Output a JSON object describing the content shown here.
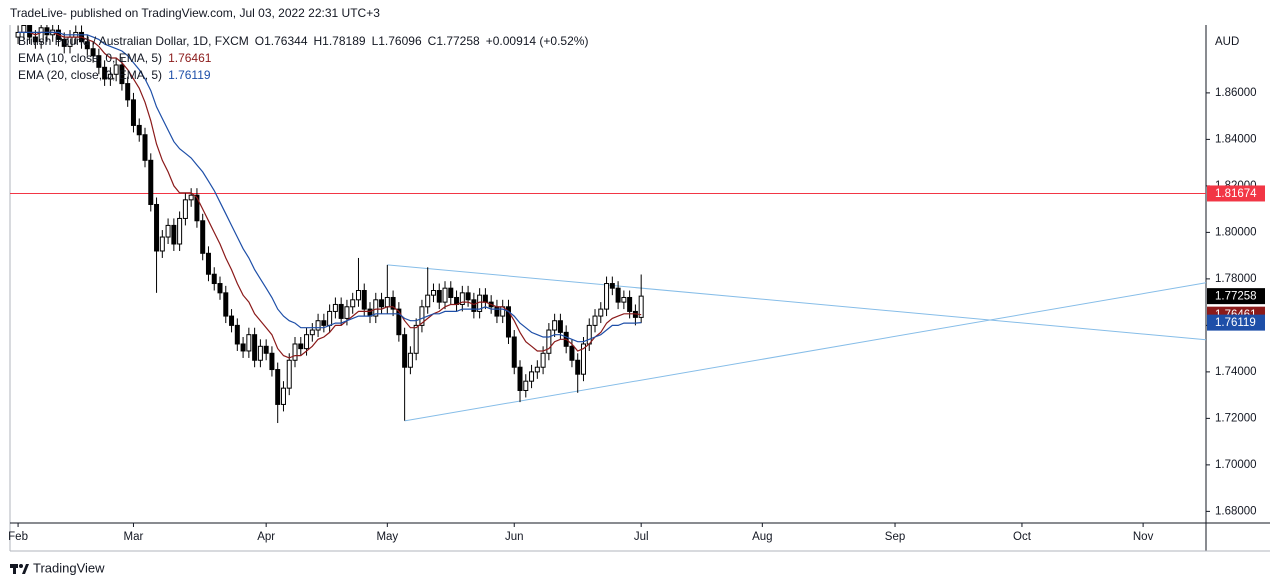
{
  "header": {
    "published": "TradeLive- published on TradingView.com, Jul 03, 2022 22:31 UTC+3"
  },
  "chart_data": {
    "type": "candlestick",
    "symbol": "British Pound / Australian Dollar, 1D, FXCM",
    "currency": "AUD",
    "ohlc_prefixes": [
      "O",
      "H",
      "L",
      "C"
    ],
    "change_label": "+0.00914 (+0.52%)",
    "up_color": "#ffffff",
    "down_color": "#000000",
    "last_color": "#000000",
    "open": [
      1.884,
      1.886,
      1.889,
      1.884,
      1.882,
      1.888,
      1.885,
      1.887,
      1.883,
      1.88,
      1.884,
      1.886,
      1.882,
      1.879,
      1.876,
      1.871,
      1.866,
      1.868,
      1.872,
      1.864,
      1.857,
      1.846,
      1.842,
      1.831,
      1.812,
      1.792,
      1.798,
      1.803,
      1.795,
      1.806,
      1.814,
      1.816,
      1.805,
      1.791,
      1.782,
      1.778,
      1.774,
      1.764,
      1.76,
      1.752,
      1.749,
      1.756,
      1.745,
      1.751,
      1.748,
      1.741,
      1.726,
      1.733,
      1.745,
      1.752,
      1.75,
      1.756,
      1.758,
      1.762,
      1.76,
      1.766,
      1.769,
      1.763,
      1.768,
      1.771,
      1.775,
      1.767,
      1.764,
      1.771,
      1.768,
      1.772,
      1.767,
      1.756,
      1.742,
      1.748,
      1.76,
      1.768,
      1.773,
      1.775,
      1.77,
      1.776,
      1.772,
      1.769,
      1.774,
      1.771,
      1.766,
      1.773,
      1.77,
      1.768,
      1.764,
      1.768,
      1.755,
      1.742,
      1.732,
      1.736,
      1.74,
      1.742,
      1.748,
      1.758,
      1.762,
      1.757,
      1.751,
      1.745,
      1.739,
      1.752,
      1.76,
      1.764,
      1.767,
      1.778,
      1.776,
      1.77,
      1.772,
      1.766,
      1.76344
    ],
    "high": [
      1.889,
      1.892,
      1.892,
      1.887,
      1.891,
      1.891,
      1.89,
      1.89,
      1.886,
      1.887,
      1.889,
      1.889,
      1.885,
      1.882,
      1.879,
      1.874,
      1.871,
      1.875,
      1.875,
      1.867,
      1.86,
      1.849,
      1.845,
      1.834,
      1.815,
      1.801,
      1.806,
      1.806,
      1.809,
      1.817,
      1.819,
      1.819,
      1.808,
      1.794,
      1.785,
      1.781,
      1.777,
      1.767,
      1.763,
      1.755,
      1.759,
      1.759,
      1.754,
      1.754,
      1.751,
      1.744,
      1.736,
      1.748,
      1.755,
      1.755,
      1.759,
      1.761,
      1.765,
      1.765,
      1.769,
      1.772,
      1.772,
      1.771,
      1.774,
      1.789,
      1.778,
      1.77,
      1.774,
      1.774,
      1.786,
      1.775,
      1.77,
      1.759,
      1.751,
      1.763,
      1.771,
      1.785,
      1.778,
      1.778,
      1.779,
      1.779,
      1.775,
      1.777,
      1.777,
      1.774,
      1.776,
      1.776,
      1.773,
      1.771,
      1.771,
      1.771,
      1.758,
      1.745,
      1.739,
      1.743,
      1.745,
      1.751,
      1.761,
      1.765,
      1.765,
      1.76,
      1.754,
      1.748,
      1.755,
      1.763,
      1.767,
      1.77,
      1.781,
      1.781,
      1.779,
      1.775,
      1.775,
      1.769,
      1.78189
    ],
    "low": [
      1.881,
      1.883,
      1.881,
      1.879,
      1.879,
      1.882,
      1.882,
      1.88,
      1.877,
      1.877,
      1.881,
      1.879,
      1.876,
      1.873,
      1.868,
      1.863,
      1.863,
      1.865,
      1.861,
      1.854,
      1.843,
      1.839,
      1.828,
      1.809,
      1.774,
      1.789,
      1.795,
      1.792,
      1.792,
      1.803,
      1.811,
      1.802,
      1.788,
      1.779,
      1.775,
      1.771,
      1.761,
      1.757,
      1.749,
      1.746,
      1.746,
      1.742,
      1.742,
      1.745,
      1.738,
      1.718,
      1.723,
      1.73,
      1.742,
      1.747,
      1.747,
      1.753,
      1.755,
      1.757,
      1.757,
      1.763,
      1.76,
      1.76,
      1.765,
      1.768,
      1.764,
      1.761,
      1.761,
      1.765,
      1.765,
      1.764,
      1.753,
      1.719,
      1.739,
      1.745,
      1.757,
      1.765,
      1.77,
      1.767,
      1.767,
      1.769,
      1.766,
      1.766,
      1.768,
      1.763,
      1.763,
      1.767,
      1.765,
      1.761,
      1.761,
      1.752,
      1.739,
      1.727,
      1.729,
      1.733,
      1.737,
      1.739,
      1.745,
      1.755,
      1.754,
      1.748,
      1.742,
      1.731,
      1.736,
      1.749,
      1.757,
      1.761,
      1.764,
      1.773,
      1.767,
      1.767,
      1.763,
      1.76,
      1.76096
    ],
    "close": [
      1.886,
      1.889,
      1.884,
      1.882,
      1.888,
      1.885,
      1.887,
      1.883,
      1.88,
      1.884,
      1.886,
      1.882,
      1.879,
      1.876,
      1.871,
      1.866,
      1.868,
      1.872,
      1.864,
      1.857,
      1.846,
      1.842,
      1.831,
      1.812,
      1.792,
      1.798,
      1.803,
      1.795,
      1.806,
      1.814,
      1.816,
      1.805,
      1.791,
      1.782,
      1.778,
      1.774,
      1.764,
      1.76,
      1.752,
      1.749,
      1.756,
      1.745,
      1.751,
      1.748,
      1.741,
      1.726,
      1.733,
      1.745,
      1.752,
      1.75,
      1.756,
      1.758,
      1.762,
      1.76,
      1.766,
      1.769,
      1.763,
      1.768,
      1.771,
      1.775,
      1.767,
      1.764,
      1.771,
      1.768,
      1.772,
      1.767,
      1.756,
      1.742,
      1.748,
      1.76,
      1.768,
      1.773,
      1.775,
      1.77,
      1.776,
      1.772,
      1.769,
      1.774,
      1.771,
      1.766,
      1.773,
      1.77,
      1.768,
      1.764,
      1.768,
      1.755,
      1.742,
      1.732,
      1.736,
      1.74,
      1.742,
      1.748,
      1.758,
      1.762,
      1.757,
      1.751,
      1.745,
      1.739,
      1.752,
      1.76,
      1.764,
      1.767,
      1.778,
      1.776,
      1.77,
      1.772,
      1.766,
      1.76344,
      1.77258
    ],
    "series": [
      {
        "name": "EMA (10, close, 0, EMA, 5)",
        "color": "#8b1a1a",
        "values": [
          1.886,
          1.886,
          1.886,
          1.885,
          1.886,
          1.886,
          1.886,
          1.885,
          1.884,
          1.884,
          1.884,
          1.884,
          1.883,
          1.882,
          1.88,
          1.877,
          1.875,
          1.875,
          1.873,
          1.87,
          1.866,
          1.862,
          1.856,
          1.848,
          1.838,
          1.831,
          1.826,
          1.82,
          1.817,
          1.817,
          1.817,
          1.815,
          1.81,
          1.805,
          1.8,
          1.795,
          1.789,
          1.784,
          1.778,
          1.773,
          1.77,
          1.765,
          1.762,
          1.759,
          1.756,
          1.75,
          1.747,
          1.746,
          1.747,
          1.747,
          1.749,
          1.751,
          1.754,
          1.755,
          1.757,
          1.76,
          1.76,
          1.762,
          1.764,
          1.766,
          1.766,
          1.766,
          1.767,
          1.767,
          1.768,
          1.768,
          1.766,
          1.762,
          1.759,
          1.759,
          1.761,
          1.763,
          1.765,
          1.766,
          1.768,
          1.769,
          1.769,
          1.77,
          1.77,
          1.769,
          1.77,
          1.77,
          1.769,
          1.768,
          1.768,
          1.766,
          1.762,
          1.757,
          1.753,
          1.751,
          1.749,
          1.749,
          1.75,
          1.753,
          1.754,
          1.754,
          1.752,
          1.749,
          1.75,
          1.752,
          1.755,
          1.757,
          1.761,
          1.763,
          1.764,
          1.765,
          1.765,
          1.765,
          1.76461
        ]
      },
      {
        "name": "EMA (20, close, 0, EMA, 5)",
        "color": "#1e4fa8",
        "values": [
          1.886,
          1.886,
          1.886,
          1.886,
          1.886,
          1.886,
          1.886,
          1.886,
          1.885,
          1.885,
          1.885,
          1.885,
          1.885,
          1.884,
          1.883,
          1.881,
          1.88,
          1.879,
          1.878,
          1.876,
          1.873,
          1.87,
          1.866,
          1.861,
          1.854,
          1.849,
          1.844,
          1.839,
          1.836,
          1.834,
          1.832,
          1.829,
          1.826,
          1.822,
          1.818,
          1.813,
          1.808,
          1.803,
          1.798,
          1.793,
          1.789,
          1.784,
          1.78,
          1.776,
          1.772,
          1.767,
          1.764,
          1.762,
          1.761,
          1.759,
          1.759,
          1.759,
          1.759,
          1.759,
          1.76,
          1.761,
          1.761,
          1.762,
          1.763,
          1.764,
          1.764,
          1.764,
          1.765,
          1.765,
          1.765,
          1.765,
          1.765,
          1.763,
          1.762,
          1.762,
          1.763,
          1.764,
          1.765,
          1.765,
          1.766,
          1.766,
          1.766,
          1.767,
          1.767,
          1.767,
          1.767,
          1.768,
          1.767,
          1.767,
          1.767,
          1.766,
          1.764,
          1.761,
          1.759,
          1.757,
          1.756,
          1.755,
          1.755,
          1.756,
          1.756,
          1.755,
          1.754,
          1.753,
          1.753,
          1.754,
          1.755,
          1.756,
          1.758,
          1.76,
          1.76,
          1.761,
          1.761,
          1.761,
          1.76119
        ]
      }
    ],
    "hlines": [
      {
        "value": 1.81674,
        "color": "#f23645"
      }
    ],
    "trendlines": [
      {
        "x": [
          64,
          205.9
        ],
        "y": [
          1.786,
          1.7538
        ],
        "color": "#86bde8"
      },
      {
        "x": [
          67,
          205.9
        ],
        "y": [
          1.7189,
          1.7783
        ],
        "color": "#86bde8"
      }
    ],
    "xlim": [
      -1.4,
      205.9
    ],
    "xticks": [
      {
        "value": 0,
        "label": "Feb"
      },
      {
        "value": 20,
        "label": "Mar"
      },
      {
        "value": 43,
        "label": "Apr"
      },
      {
        "value": 64,
        "label": "May"
      },
      {
        "value": 86,
        "label": "Jun"
      },
      {
        "value": 108,
        "label": "Jul"
      },
      {
        "value": 129,
        "label": "Aug"
      },
      {
        "value": 152,
        "label": "Sep"
      },
      {
        "value": 174,
        "label": "Oct"
      },
      {
        "value": 195,
        "label": "Nov"
      }
    ],
    "ylim": [
      1.675,
      1.8892
    ],
    "yticks": [
      {
        "value": 1.68,
        "label": "1.68000"
      },
      {
        "value": 1.7,
        "label": "1.70000"
      },
      {
        "value": 1.72,
        "label": "1.72000"
      },
      {
        "value": 1.74,
        "label": "1.74000"
      },
      {
        "value": 1.76,
        "label": "1.76000"
      },
      {
        "value": 1.78,
        "label": "1.78000"
      },
      {
        "value": 1.8,
        "label": "1.80000"
      },
      {
        "value": 1.82,
        "label": "1.82000"
      },
      {
        "value": 1.84,
        "label": "1.84000"
      },
      {
        "value": 1.86,
        "label": "1.86000"
      }
    ]
  },
  "footer": {
    "brand": "TradingView"
  }
}
